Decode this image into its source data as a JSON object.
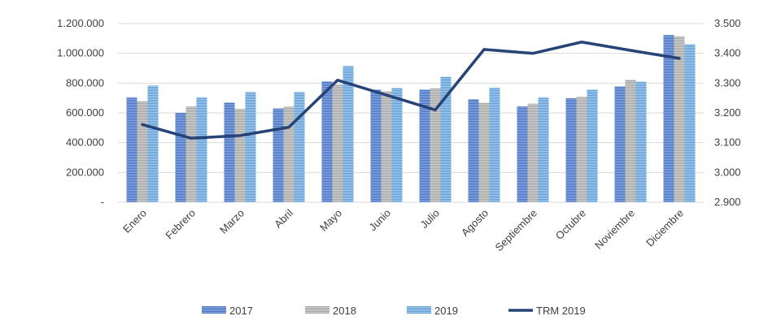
{
  "chart_data": {
    "type": "bar",
    "categories": [
      "Enero",
      "Febrero",
      "Marzo",
      "Abril",
      "Mayo",
      "Junio",
      "Julio",
      "Agosto",
      "Septiembre",
      "Octubre",
      "Noviembre",
      "Diciembre"
    ],
    "series": [
      {
        "name": "2017",
        "axis": "left",
        "color": "#4472C4",
        "values": [
          705000,
          600000,
          670000,
          630000,
          812000,
          757000,
          757000,
          692000,
          643000,
          698000,
          778000,
          1123000
        ]
      },
      {
        "name": "2018",
        "axis": "left",
        "color": "#A5A5A5",
        "values": [
          678000,
          643000,
          628000,
          642000,
          792000,
          745000,
          765000,
          668000,
          662000,
          708000,
          823000,
          1113000
        ]
      },
      {
        "name": "2019",
        "axis": "left",
        "color": "#5B9BD5",
        "values": [
          783000,
          705000,
          740000,
          740000,
          915000,
          768000,
          843000,
          770000,
          705000,
          757000,
          810000,
          1060000
        ]
      }
    ],
    "line_series": {
      "name": "TRM 2019",
      "axis": "right",
      "color": "#264478",
      "values": [
        3161,
        3115,
        3124,
        3152,
        3310,
        3260,
        3210,
        3413,
        3400,
        3438,
        3410,
        3383
      ]
    },
    "y_left": {
      "min": 0,
      "max": 1200000,
      "step": 200000,
      "tick_labels": [
        "-",
        "200.000",
        "400.000",
        "600.000",
        "800.000",
        "1.000.000",
        "1.200.000"
      ]
    },
    "y_right": {
      "min": 2900,
      "max": 3500,
      "step": 100,
      "tick_labels": [
        "2.900",
        "3.000",
        "3.100",
        "3.200",
        "3.300",
        "3.400",
        "3.500"
      ]
    },
    "title": "",
    "xlabel": "",
    "ylabel": "",
    "legend": {
      "position": "bottom",
      "entries": [
        "2017",
        "2018",
        "2019",
        "TRM 2019"
      ]
    },
    "grid": true
  }
}
